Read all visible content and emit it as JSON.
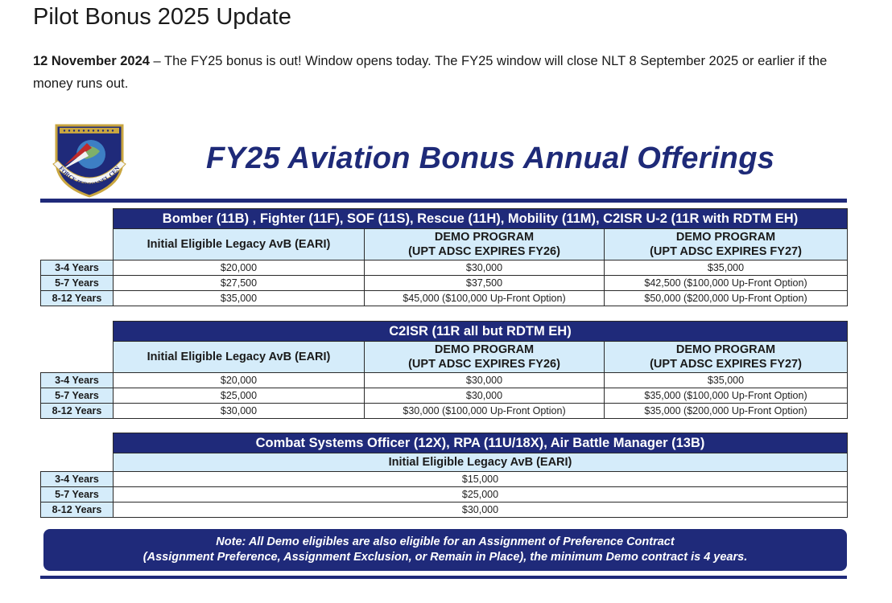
{
  "page": {
    "title": "Pilot Bonus 2025 Update",
    "intro_date": "12 November 2024",
    "intro_text": " – The FY25 bonus is out! Window opens today. The FY25 window will close NLT 8 September 2025 or earlier if the money runs out."
  },
  "graphic": {
    "logo_text": "AIR FORCE PERSONNEL CENTER",
    "banner": "FY25 Aviation Bonus Annual Offerings",
    "colors": {
      "navy": "#1f2a7a",
      "header_fill": "#d5ecfa"
    },
    "table1": {
      "title": "Bomber (11B) , Fighter (11F), SOF (11S), Rescue (11H), Mobility (11M), C2ISR U-2 (11R with RDTM EH)",
      "col_legacy": "Initial Eligible Legacy AvB (EARI)",
      "col_demo26_l1": "DEMO PROGRAM",
      "col_demo26_l2": "(UPT ADSC EXPIRES FY26)",
      "col_demo27_l1": "DEMO PROGRAM",
      "col_demo27_l2": "(UPT ADSC EXPIRES FY27)",
      "rows": [
        {
          "label": "3-4 Years",
          "legacy": "$20,000",
          "demo26": "$30,000",
          "demo27": "$35,000"
        },
        {
          "label": "5-7 Years",
          "legacy": "$27,500",
          "demo26": "$37,500",
          "demo27": "$42,500 ($100,000 Up-Front Option)"
        },
        {
          "label": "8-12 Years",
          "legacy": "$35,000",
          "demo26": "$45,000 ($100,000 Up-Front Option)",
          "demo27": "$50,000 ($200,000 Up-Front Option)"
        }
      ]
    },
    "table2": {
      "title": "C2ISR (11R all but RDTM EH)",
      "col_legacy": "Initial Eligible Legacy AvB (EARI)",
      "col_demo26_l1": "DEMO PROGRAM",
      "col_demo26_l2": "(UPT ADSC EXPIRES FY26)",
      "col_demo27_l1": "DEMO PROGRAM",
      "col_demo27_l2": "(UPT ADSC EXPIRES FY27)",
      "rows": [
        {
          "label": "3-4 Years",
          "legacy": "$20,000",
          "demo26": "$30,000",
          "demo27": "$35,000"
        },
        {
          "label": "5-7 Years",
          "legacy": "$25,000",
          "demo26": "$30,000",
          "demo27": "$35,000 ($100,000 Up-Front Option)"
        },
        {
          "label": "8-12 Years",
          "legacy": "$30,000",
          "demo26": "$30,000 ($100,000 Up-Front Option)",
          "demo27": "$35,000 ($200,000 Up-Front Option)"
        }
      ]
    },
    "table3": {
      "title": "Combat Systems Officer (12X), RPA (11U/18X), Air Battle Manager (13B)",
      "col_legacy": "Initial Eligible Legacy AvB (EARI)",
      "rows": [
        {
          "label": "3-4 Years",
          "legacy": "$15,000"
        },
        {
          "label": "5-7 Years",
          "legacy": "$25,000"
        },
        {
          "label": "8-12 Years",
          "legacy": "$30,000"
        }
      ]
    },
    "note_line1": "Note: All Demo eligibles are also eligible for an Assignment of Preference Contract",
    "note_line2": "(Assignment Preference, Assignment Exclusion, or Remain in Place), the minimum Demo contract is 4 years."
  }
}
